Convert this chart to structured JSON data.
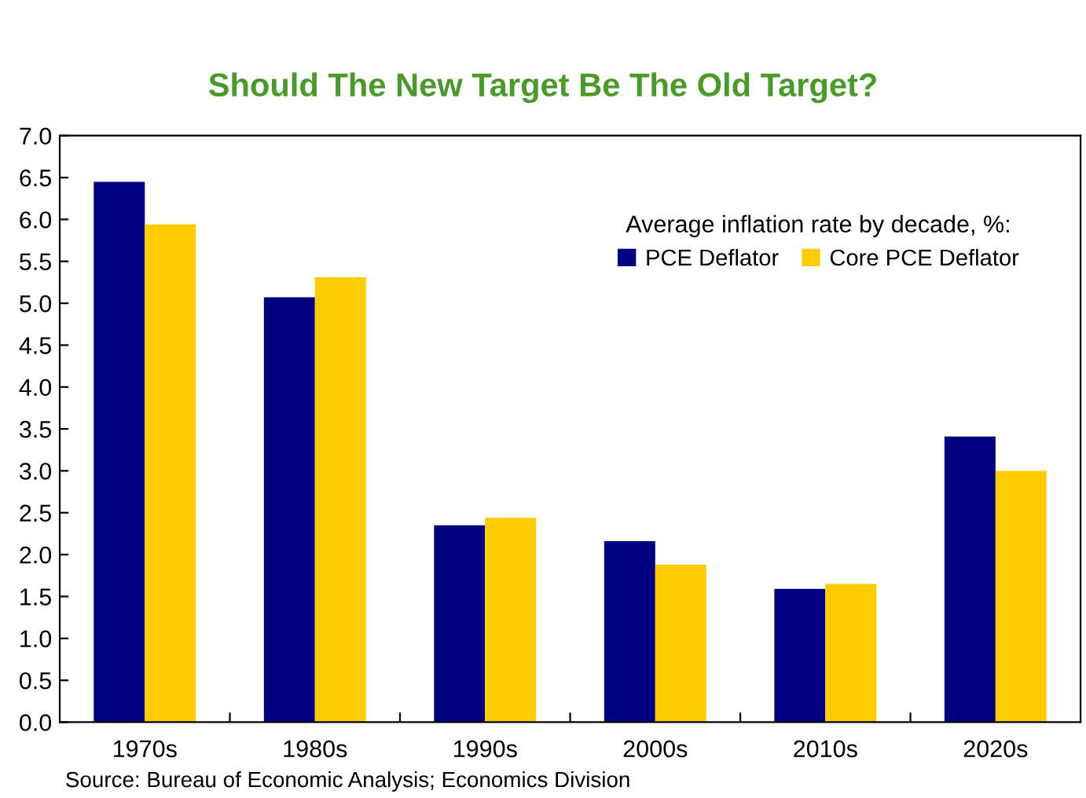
{
  "chart_data": {
    "type": "bar",
    "title": "Should The New Target Be The Old Target?",
    "categories": [
      "1970s",
      "1980s",
      "1990s",
      "2000s",
      "2010s",
      "2020s"
    ],
    "series": [
      {
        "name": "PCE Deflator",
        "color": "#000080",
        "values": [
          6.45,
          5.07,
          2.35,
          2.16,
          1.59,
          3.41
        ]
      },
      {
        "name": "Core PCE Deflator",
        "color": "#ffcc00",
        "values": [
          5.94,
          5.31,
          2.44,
          1.88,
          1.65,
          3.0
        ]
      }
    ],
    "ylim": [
      0,
      7
    ],
    "yticks": [
      {
        "value": 0,
        "label": "0.0"
      },
      0.5,
      {
        "value": 1,
        "label": "1.0"
      },
      1.5,
      {
        "value": 2,
        "label": "2.0"
      },
      2.5,
      {
        "value": 3,
        "label": "3.0"
      },
      3.5,
      {
        "value": 4,
        "label": "4.0"
      },
      4.5,
      {
        "value": 5,
        "label": "5.0"
      },
      5.5,
      {
        "value": 6,
        "label": "6.0"
      },
      6.5,
      {
        "value": 7,
        "label": "7.0"
      }
    ],
    "legend_title": "Average inflation rate by decade, %:",
    "legend": "top right",
    "grid": false,
    "annotations": [
      "Source: Bureau of Economic Analysis; Economics Division"
    ]
  }
}
